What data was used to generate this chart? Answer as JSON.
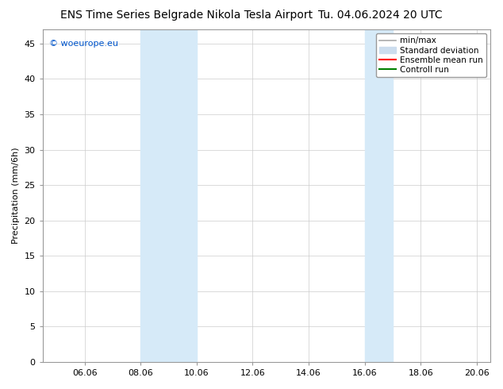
{
  "title_left": "ENS Time Series Belgrade Nikola Tesla Airport",
  "title_right": "Tu. 04.06.2024 20 UTC",
  "ylabel": "Precipitation (mm/6h)",
  "xlabel": "",
  "xlim": [
    4.5,
    20.5
  ],
  "ylim": [
    0,
    47
  ],
  "yticks": [
    0,
    5,
    10,
    15,
    20,
    25,
    30,
    35,
    40,
    45
  ],
  "xtick_labels": [
    "06.06",
    "08.06",
    "10.06",
    "12.06",
    "14.06",
    "16.06",
    "18.06",
    "20.06"
  ],
  "xtick_positions": [
    6,
    8,
    10,
    12,
    14,
    16,
    18,
    20
  ],
  "shaded_bands": [
    {
      "xmin": 8.0,
      "xmax": 10.0,
      "color": "#d6eaf8"
    },
    {
      "xmin": 16.0,
      "xmax": 17.0,
      "color": "#d6eaf8"
    }
  ],
  "watermark_text": "© woeurope.eu",
  "watermark_color": "#0055cc",
  "background_color": "#ffffff",
  "plot_bg_color": "#ffffff",
  "border_color": "#999999",
  "legend_entries": [
    {
      "label": "min/max",
      "color": "#aaaaaa",
      "linestyle": "-",
      "linewidth": 1.2,
      "type": "line"
    },
    {
      "label": "Standard deviation",
      "color": "#ccddee",
      "linestyle": "-",
      "linewidth": 7,
      "type": "patch"
    },
    {
      "label": "Ensemble mean run",
      "color": "#ff0000",
      "linestyle": "-",
      "linewidth": 1.5,
      "type": "line"
    },
    {
      "label": "Controll run",
      "color": "#008000",
      "linestyle": "-",
      "linewidth": 1.5,
      "type": "line"
    }
  ],
  "title_fontsize": 10,
  "tick_fontsize": 8,
  "ylabel_fontsize": 8,
  "legend_fontsize": 7.5,
  "watermark_fontsize": 8,
  "grid_color": "#cccccc",
  "grid_linestyle": "-",
  "grid_linewidth": 0.5
}
